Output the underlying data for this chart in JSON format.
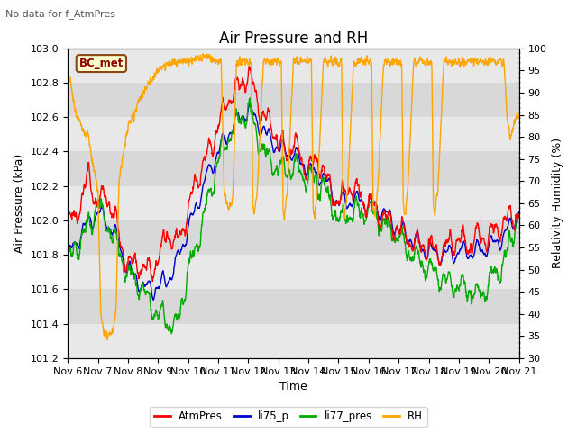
{
  "title": "Air Pressure and RH",
  "top_left_text": "No data for f_AtmPres",
  "label_box": "BC_met",
  "xlabel": "Time",
  "ylabel_left": "Air Pressure (kPa)",
  "ylabel_right": "Relativity Humidity (%)",
  "ylim_left": [
    101.2,
    103.0
  ],
  "ylim_right": [
    30,
    100
  ],
  "yticks_left": [
    101.2,
    101.4,
    101.6,
    101.8,
    102.0,
    102.2,
    102.4,
    102.6,
    102.8,
    103.0
  ],
  "yticks_right": [
    30,
    35,
    40,
    45,
    50,
    55,
    60,
    65,
    70,
    75,
    80,
    85,
    90,
    95,
    100
  ],
  "xtick_labels": [
    "Nov 6",
    "Nov 7",
    "Nov 8",
    "Nov 9",
    "Nov 10",
    "Nov 11",
    "Nov 12",
    "Nov 13",
    "Nov 14",
    "Nov 15",
    "Nov 16",
    "Nov 17",
    "Nov 18",
    "Nov 19",
    "Nov 20",
    "Nov 21"
  ],
  "bg_color": "#ffffff",
  "plot_bg_color": "#f0f0f0",
  "band_light": "#e8e8e8",
  "band_dark": "#d8d8d8",
  "legend_entries": [
    "AtmPres",
    "li75_p",
    "li77_pres",
    "RH"
  ],
  "legend_colors": [
    "#ff0000",
    "#0000cc",
    "#00aa00",
    "#ffa500"
  ],
  "title_fontsize": 12,
  "axis_label_fontsize": 9,
  "tick_fontsize": 8
}
